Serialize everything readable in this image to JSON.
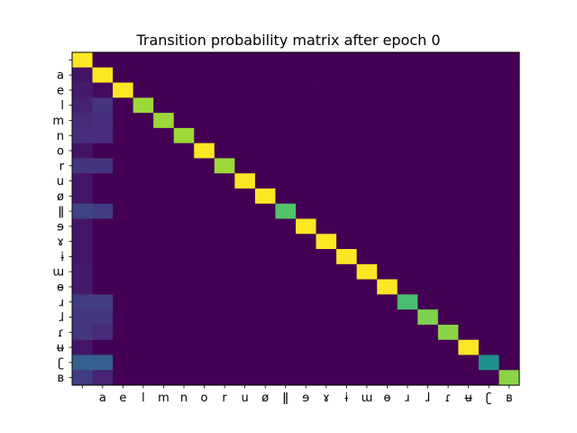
{
  "chart_data": {
    "type": "heatmap",
    "title": "Transition probability matrix after epoch 0",
    "xlabel": "",
    "ylabel": "",
    "labels": [
      "",
      "a",
      "e",
      "l",
      "m",
      "n",
      "o",
      "r",
      "u",
      "ø",
      "ǁ",
      "ɘ",
      "ɤ",
      "ɨ",
      "ɯ",
      "ɵ",
      "ɹ",
      "ɺ",
      "ɾ",
      "ʉ",
      "ʗ",
      "ʙ"
    ],
    "diagonal": [
      1.0,
      1.0,
      1.0,
      0.85,
      0.85,
      0.85,
      1.0,
      0.85,
      1.0,
      1.0,
      0.72,
      1.0,
      1.0,
      1.0,
      1.0,
      1.0,
      0.7,
      0.8,
      0.82,
      1.0,
      0.5,
      0.82
    ],
    "col0": [
      0,
      0.05,
      0.07,
      0.09,
      0.12,
      0.13,
      0.05,
      0.15,
      0.06,
      0.06,
      0.2,
      0.06,
      0.06,
      0.06,
      0.07,
      0.07,
      0.18,
      0.16,
      0.16,
      0.06,
      0.3,
      0.18
    ],
    "col1": [
      0,
      0,
      0.03,
      0.15,
      0.13,
      0.13,
      0.0,
      0.15,
      0.0,
      0.0,
      0.18,
      0.0,
      0.0,
      0.0,
      0.0,
      0.0,
      0.18,
      0.16,
      0.12,
      0.0,
      0.3,
      0.1
    ],
    "colormap": [
      "#440154",
      "#472d7b",
      "#3b528b",
      "#2c728e",
      "#21918c",
      "#28ae80",
      "#5ec962",
      "#addc30",
      "#fde725"
    ]
  }
}
